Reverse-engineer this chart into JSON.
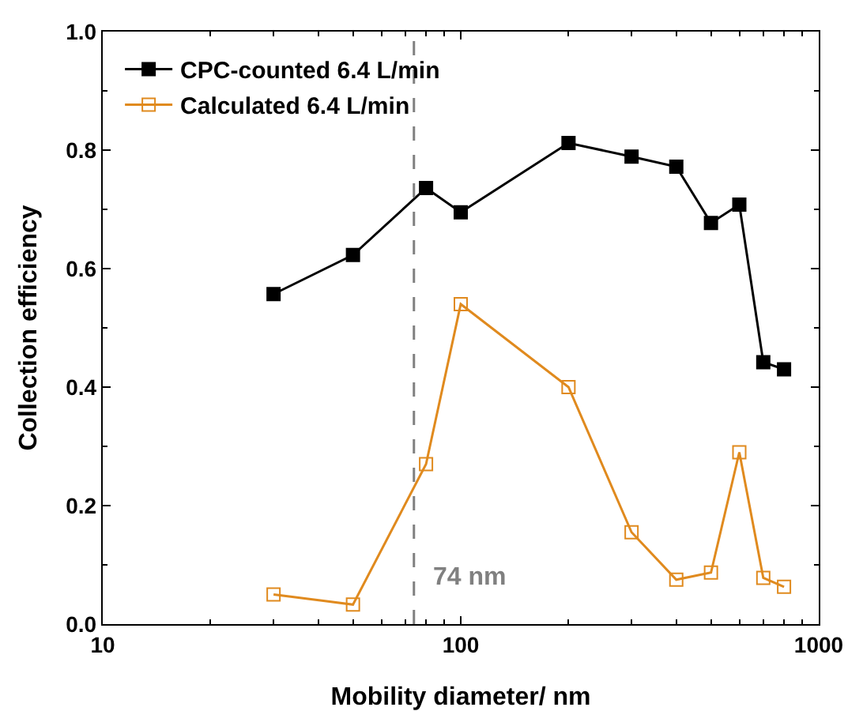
{
  "chart_data": {
    "type": "line",
    "xlabel": "Mobility diameter/ nm",
    "ylabel": "Collection efficiency",
    "x": [
      30,
      50,
      80,
      100,
      200,
      300,
      400,
      500,
      600,
      700,
      800
    ],
    "series": [
      {
        "name": "CPC-counted 6.4 L/min",
        "color": "#000000",
        "marker": "square",
        "values": [
          0.557,
          0.623,
          0.736,
          0.695,
          0.812,
          0.789,
          0.772,
          0.677,
          0.708,
          0.442,
          0.43
        ]
      },
      {
        "name": "Calculated 6.4 L/min",
        "color": "#e08a1e",
        "marker": "square-open",
        "values": [
          0.05,
          0.033,
          0.27,
          0.54,
          0.4,
          0.155,
          0.075,
          0.087,
          0.29,
          0.078,
          0.063
        ]
      }
    ],
    "log": "x",
    "xlim": [
      10,
      1000
    ],
    "xticks": [
      10,
      100,
      1000
    ],
    "ylim": [
      0,
      1.0
    ],
    "yticks": [
      {
        "value": 0,
        "label": "0.0"
      },
      0.2,
      0.4,
      0.6,
      0.8,
      {
        "value": 1,
        "label": "1.0"
      }
    ],
    "ref_lines": [
      {
        "axis": "x",
        "value": 74,
        "label": "74 nm",
        "color": "#808080",
        "line_style": "dashed"
      }
    ],
    "grid": false,
    "legend": "top left"
  }
}
